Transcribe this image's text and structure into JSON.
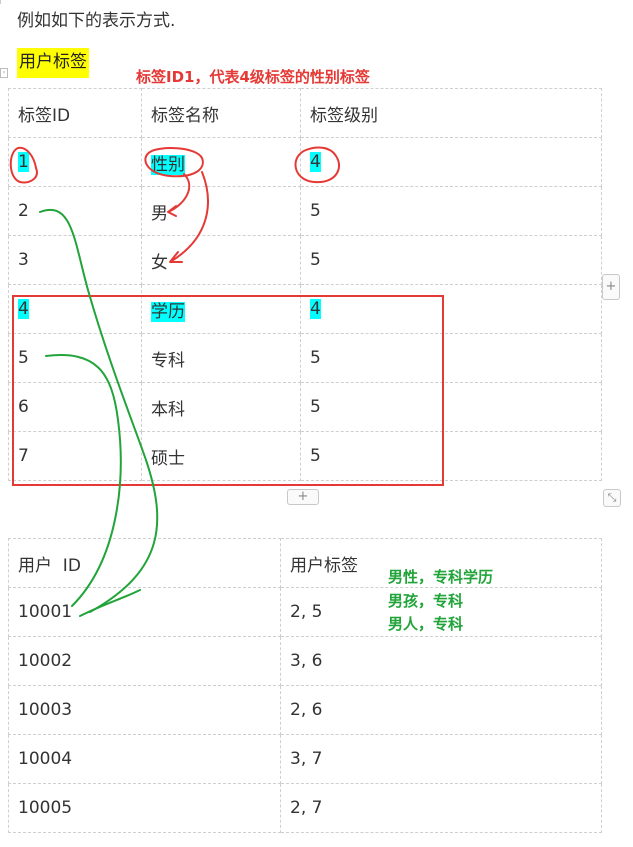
{
  "intro": "例如如下的表示方式.",
  "heading": "用户标签",
  "note_red": "标签ID1，代表4级标签的性别标签",
  "note_green": [
    "男性，专科学历",
    "男孩，专科",
    "男人，专科"
  ],
  "tag_table": {
    "headers": [
      "标签ID",
      "标签名称",
      "标签级别"
    ],
    "rows": [
      [
        "1",
        "性别",
        "4"
      ],
      [
        "2",
        "男",
        "5"
      ],
      [
        "3",
        "女",
        "5"
      ],
      [
        "4",
        "学历",
        "4"
      ],
      [
        "5",
        "专科",
        "5"
      ],
      [
        "6",
        "本科",
        "5"
      ],
      [
        "7",
        "硕士",
        "5"
      ]
    ]
  },
  "user_table": {
    "headers": [
      "用户  ID",
      "用户标签"
    ],
    "rows": [
      [
        "10001",
        "2, 5"
      ],
      [
        "10002",
        "3, 6"
      ],
      [
        "10003",
        "2, 6"
      ],
      [
        "10004",
        "3, 7"
      ],
      [
        "10005",
        "2, 7"
      ]
    ]
  },
  "controls": {
    "add_col": "+",
    "add_row": "+",
    "resize": "⤡"
  },
  "colors": {
    "highlight_yellow": "#ffff00",
    "highlight_cyan": "#00ffff",
    "ink_red": "#e53935",
    "ink_green": "#22a43a"
  }
}
